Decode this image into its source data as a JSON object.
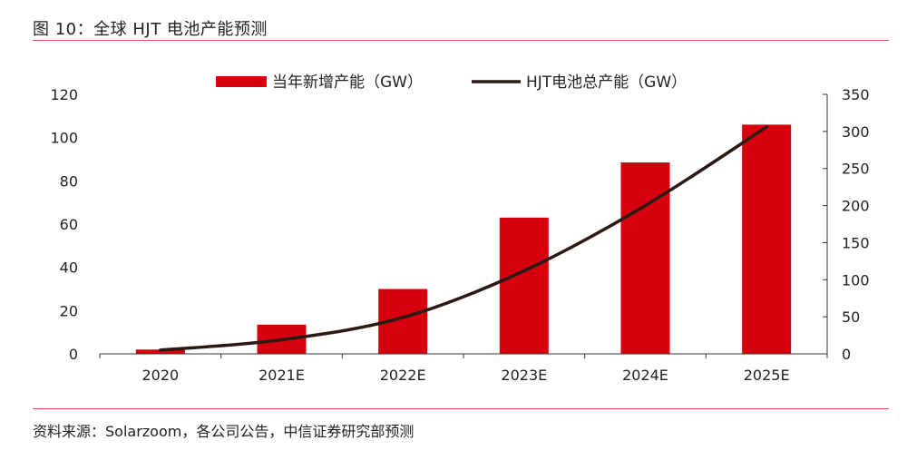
{
  "figure_title": "图 10：全球 HJT 电池产能预测",
  "source_note": "资料来源：Solarzoom，各公司公告，中信证券研究部预测",
  "colors": {
    "bar": "#d7000f",
    "line": "#2b1a14",
    "rule": "#e05a5a",
    "axis": "#333333"
  },
  "chart_data": {
    "type": "bar+line",
    "categories": [
      "2020",
      "2021E",
      "2022E",
      "2023E",
      "2024E",
      "2025E"
    ],
    "series": [
      {
        "name": "当年新增产能（GW）",
        "type": "bar",
        "axis": "left",
        "values": [
          2,
          13.5,
          30,
          63,
          88.5,
          106
        ]
      },
      {
        "name": "HJT电池总产能（GW）",
        "type": "line",
        "axis": "right",
        "values": [
          5,
          19,
          49,
          112,
          200,
          306
        ]
      }
    ],
    "y_left": {
      "min": 0,
      "max": 120,
      "ticks": [
        0,
        20,
        40,
        60,
        80,
        100,
        120
      ]
    },
    "y_right": {
      "min": 0,
      "max": 350,
      "ticks": [
        0,
        50,
        100,
        150,
        200,
        250,
        300,
        350
      ]
    },
    "legend_position": "top-center",
    "grid": false
  }
}
